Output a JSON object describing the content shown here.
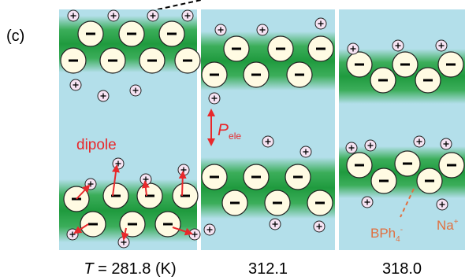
{
  "figure_label": "(c)",
  "dipole_label": "dipole",
  "polarization_label": {
    "symbol": "P",
    "subscript": "ele"
  },
  "anion_label": {
    "text": "BPh",
    "subscript": "4",
    "superscript": "-"
  },
  "cation_label": {
    "text": "Na",
    "superscript": "+"
  },
  "panels": [
    {
      "temperature": {
        "symbol": "T",
        "text": "= 281.8 (K)"
      }
    },
    {
      "temperature": {
        "text": "312.1"
      }
    },
    {
      "temperature": {
        "text": "318.0"
      }
    }
  ]
}
